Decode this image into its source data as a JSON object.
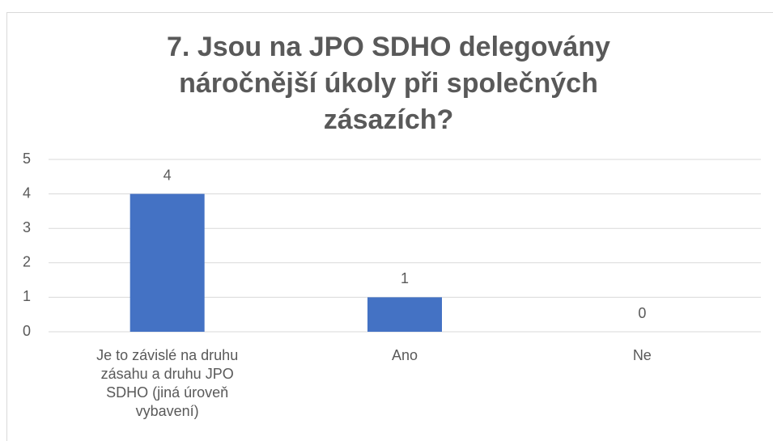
{
  "chart_data": {
    "type": "bar",
    "title": "7. Jsou na JPO SDHO delegovány náročnější úkoly při společných zásazích?",
    "categories": [
      "Je to závislé na druhu zásahu a druhu JPO SDHO (jiná úroveň vybavení)",
      "Ano",
      "Ne"
    ],
    "values": [
      4,
      1,
      0
    ],
    "color": "#4472c4",
    "ylim": [
      0,
      5
    ],
    "yticks": [
      0,
      1,
      2,
      3,
      4,
      5
    ],
    "grid": true
  }
}
